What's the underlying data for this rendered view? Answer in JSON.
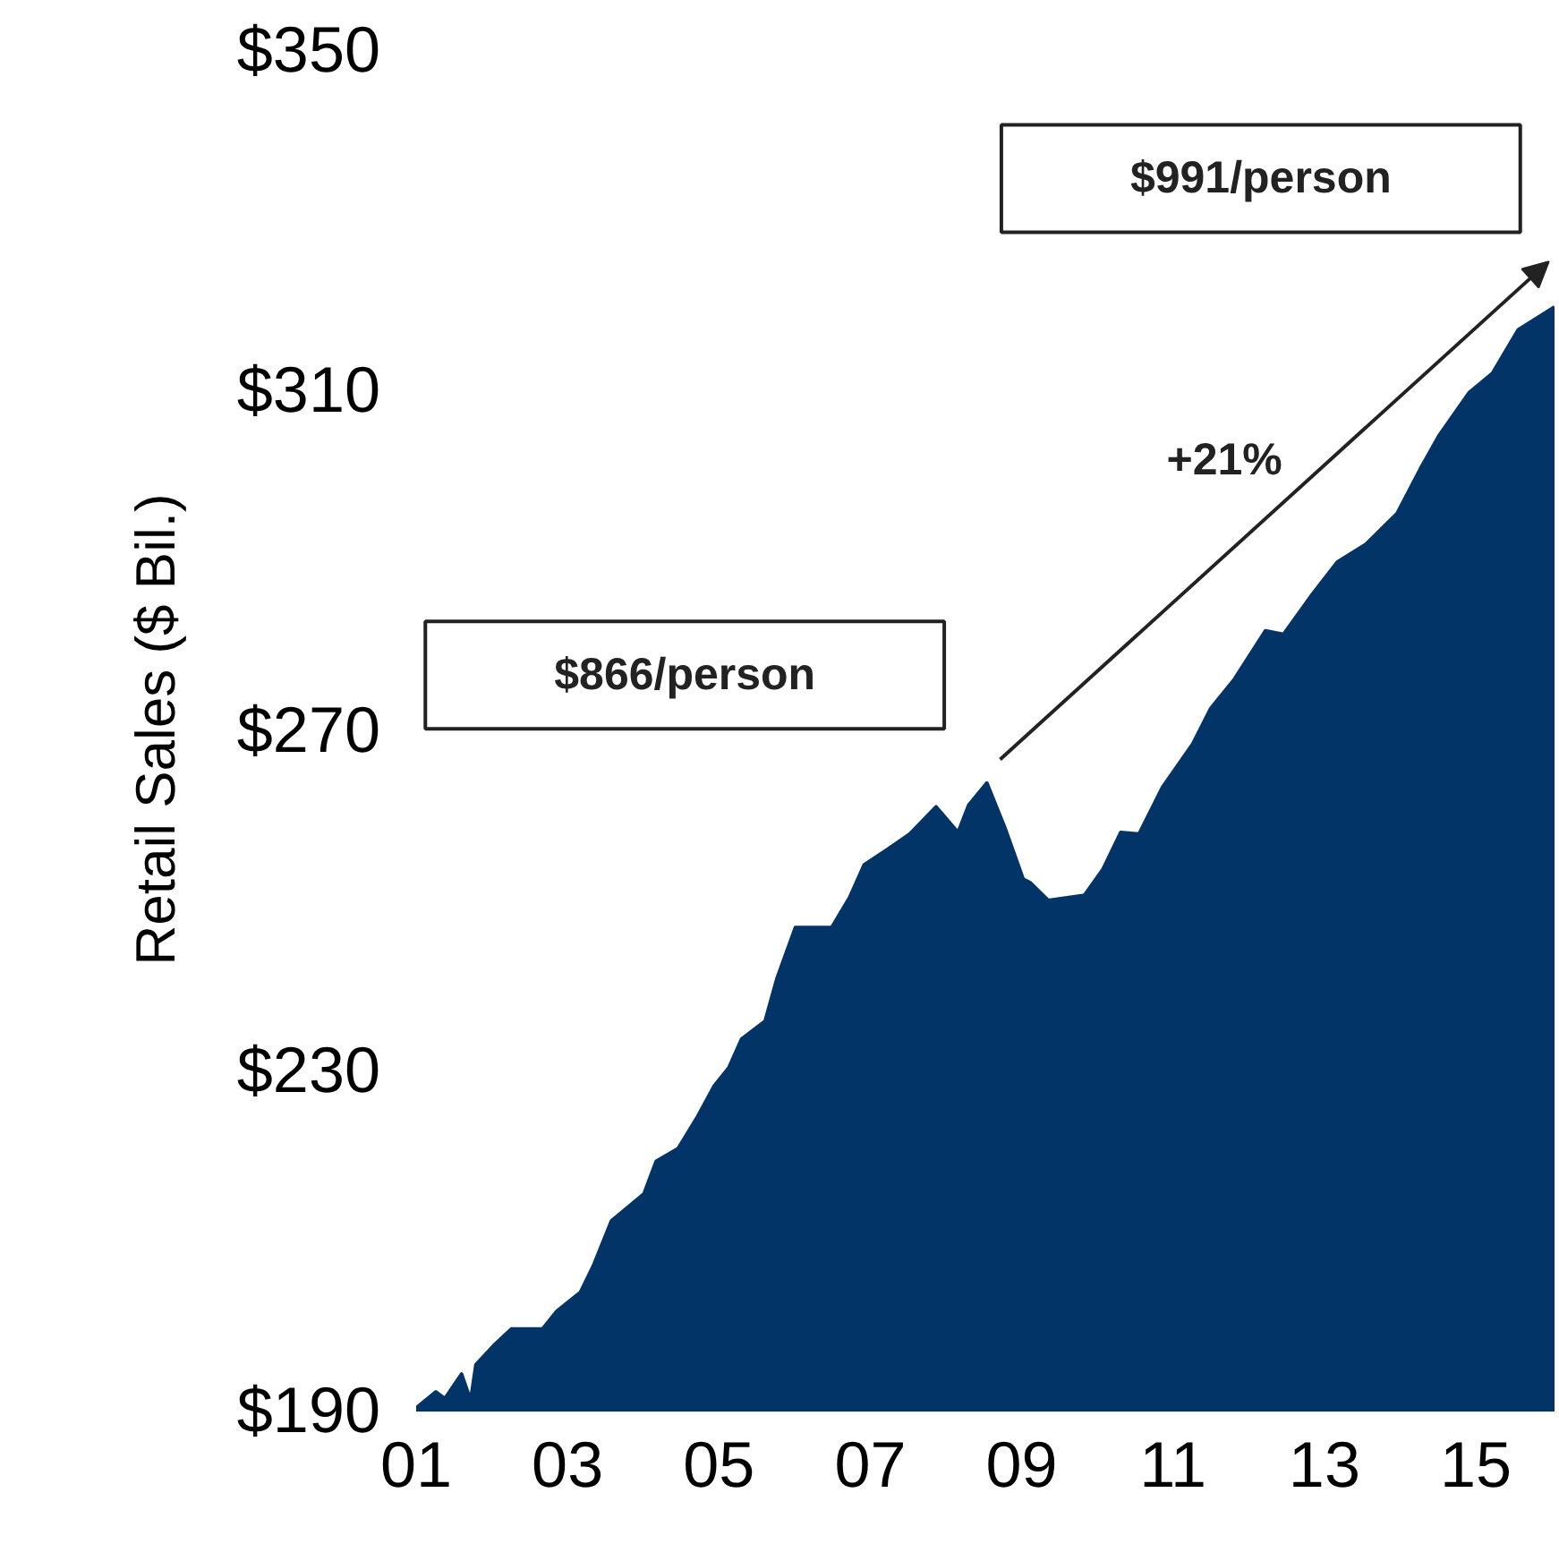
{
  "chart_data": {
    "type": "area",
    "ylabel": "Retail Sales ($ Bil.)",
    "x": [
      2001.0,
      2001.26,
      2001.38,
      2001.6,
      2001.72,
      2001.79,
      2002.03,
      2002.26,
      2002.67,
      2002.86,
      2003.17,
      2003.34,
      2003.58,
      2004.01,
      2004.17,
      2004.46,
      2004.72,
      2004.94,
      2005.13,
      2005.3,
      2005.61,
      2005.77,
      2006.01,
      2006.49,
      2006.73,
      2006.92,
      2007.21,
      2007.52,
      2007.87,
      2008.16,
      2008.3,
      2008.54,
      2008.78,
      2009.02,
      2009.11,
      2009.35,
      2009.83,
      2010.07,
      2010.31,
      2010.55,
      2010.86,
      2011.26,
      2011.5,
      2011.81,
      2012.22,
      2012.46,
      2012.84,
      2013.17,
      2013.55,
      2013.96,
      2014.27,
      2014.51,
      2014.91,
      2015.22,
      2015.56,
      2016.04
    ],
    "series": [
      {
        "color": "#033468",
        "values": [
          190.2,
          192.1,
          191.3,
          194.2,
          191.1,
          195.3,
          197.6,
          199.5,
          199.5,
          201.6,
          203.8,
          206.9,
          212.2,
          215.4,
          219.2,
          220.7,
          224.5,
          228.1,
          230.2,
          233.6,
          235.7,
          240.8,
          246.7,
          246.7,
          250.3,
          254.1,
          255.8,
          257.7,
          260.9,
          257.9,
          261.1,
          263.7,
          258.4,
          252.4,
          252.0,
          249.9,
          250.5,
          253.5,
          257.9,
          257.7,
          263.2,
          268.3,
          272.5,
          275.9,
          281.6,
          281.2,
          285.9,
          289.7,
          291.8,
          295.4,
          300.7,
          304.5,
          309.6,
          311.9,
          317.0,
          319.7
        ]
      }
    ],
    "xlim": [
      2001.0,
      2016.04
    ],
    "ylim": [
      190,
      350
    ],
    "xticks": [
      {
        "value": 2001,
        "label": "01"
      },
      {
        "value": 2003,
        "label": "03"
      },
      {
        "value": 2005,
        "label": "05"
      },
      {
        "value": 2007,
        "label": "07"
      },
      {
        "value": 2009,
        "label": "09"
      },
      {
        "value": 2011,
        "label": "11"
      },
      {
        "value": 2013,
        "label": "13"
      },
      {
        "value": 2015,
        "label": "15"
      }
    ],
    "yticks": [
      {
        "value": 190,
        "label": "$190"
      },
      {
        "value": 230,
        "label": "$230"
      },
      {
        "value": 270,
        "label": "$270"
      },
      {
        "value": 310,
        "label": "$310"
      },
      {
        "value": 350,
        "label": "$350"
      }
    ],
    "annotations": [
      "$866/person",
      "$991/person",
      "+21%"
    ],
    "grid": false
  }
}
